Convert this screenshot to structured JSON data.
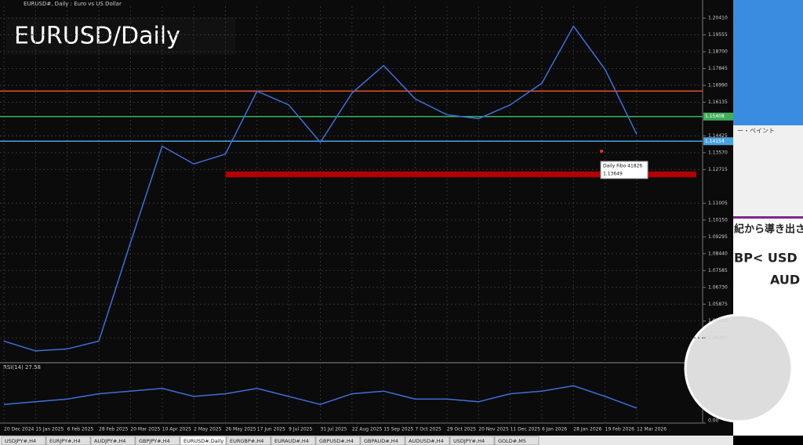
{
  "window": {
    "header": "EURUSD#, Daily : Euro vs US Dollar",
    "overlay_title": "EURUSD/Daily"
  },
  "chart_data": {
    "type": "line",
    "categories": [
      "20 Dec 2024",
      "15 Jan 2025",
      "6 Feb 2025",
      "28 Feb 2025",
      "20 Mar 2025",
      "10 Apr 2025",
      "2 May 2025",
      "26 May 2025",
      "17 Jun 2025",
      "9 Jul 2025",
      "31 Jul 2025",
      "22 Aug 2025",
      "15 Sep 2025",
      "7 Oct 2025",
      "29 Oct 2025",
      "20 Nov 2025",
      "11 Dec 2025",
      "6 Jan 2026",
      "28 Jan 2026",
      "19 Feb 2026",
      "12 Mar 2026"
    ],
    "values": [
      1.04,
      1.035,
      1.036,
      1.04,
      1.09,
      1.139,
      1.13,
      1.135,
      1.167,
      1.16,
      1.141,
      1.166,
      1.18,
      1.163,
      1.155,
      1.153,
      1.16,
      1.171,
      1.2,
      1.178,
      1.145
    ],
    "color": "#3d6fd8",
    "ylim": [
      1.0294,
      1.2101
    ],
    "yticks": [
      {
        "value": 1.2041,
        "label": "1.20410"
      },
      {
        "value": 1.19555,
        "label": "1.19555"
      },
      {
        "value": 1.187,
        "label": "1.18700"
      },
      {
        "value": 1.17845,
        "label": "1.17845"
      },
      {
        "value": 1.1699,
        "label": "1.16990"
      },
      {
        "value": 1.16135,
        "label": "1.16135"
      },
      {
        "value": 1.14425,
        "label": "1.14425"
      },
      {
        "value": 1.1357,
        "label": "1.13570"
      },
      {
        "value": 1.12715,
        "label": "1.12715"
      },
      {
        "value": 1.11005,
        "label": "1.11005"
      },
      {
        "value": 1.1015,
        "label": "1.10150"
      },
      {
        "value": 1.09295,
        "label": "1.09295"
      },
      {
        "value": 1.0844,
        "label": "1.08440"
      },
      {
        "value": 1.07585,
        "label": "1.07585"
      },
      {
        "value": 1.0673,
        "label": "1.06730"
      },
      {
        "value": 1.05875,
        "label": "1.05875"
      },
      {
        "value": 1.0502,
        "label": "1.05020"
      },
      {
        "value": 1.04165,
        "label": "1.04165"
      }
    ],
    "grid": true,
    "levels": [
      {
        "value": 1.167,
        "color": "#e0502a"
      },
      {
        "value": 1.15408,
        "label": "1.15408",
        "color": "#3fae5a"
      },
      {
        "value": 1.14154,
        "label": "1.14154",
        "color": "#4aa3df"
      }
    ],
    "zone": {
      "values": [
        1.1262,
        1.1232
      ],
      "color": "#b00000"
    },
    "tooltip": {
      "title": "Daily Fibo 41826",
      "value": 1.13649,
      "label": "1.13649"
    },
    "rsi": {
      "label": "RSI(14) 27.58",
      "values": [
        35,
        40,
        45,
        55,
        60,
        65,
        50,
        55,
        65,
        50,
        35,
        55,
        60,
        45,
        45,
        40,
        55,
        60,
        70,
        50,
        28
      ],
      "color": "#3d6fd8",
      "ylim": [
        0,
        100
      ],
      "yticks": [
        {
          "value": 0,
          "label": "0.00"
        }
      ]
    }
  },
  "tabs": [
    "USDJPY#,H4",
    "EURJPY#,H4",
    "AUDJPY#,H4",
    "GBPJPY#,H4",
    "EURUSD#,Daily",
    "EURGBP#,H4",
    "EURAUD#,H4",
    "GBPUSD#,H4",
    "GBPAUD#,H4",
    "AUDUSD#,H4",
    "USDJPY#,H4",
    "GOLD#,M5"
  ],
  "side_panel": {
    "paint": "ー・ペイント",
    "line1": "紀から導き出され",
    "line2": "BP< USD",
    "line3": "AUD"
  }
}
